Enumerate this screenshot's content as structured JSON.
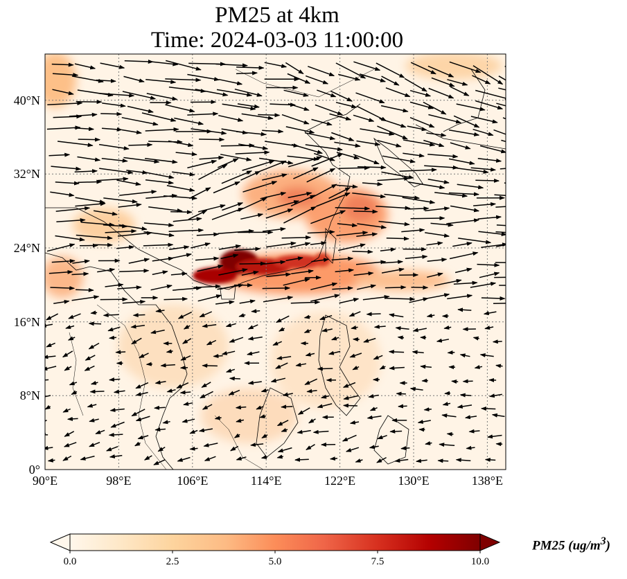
{
  "title": {
    "line1": "PM25 at 4km",
    "line2": "Time: 2024-03-03 11:00:00"
  },
  "map": {
    "extent": {
      "lon_min": 90,
      "lon_max": 140,
      "lat_min": 0,
      "lat_max": 45
    },
    "gridlines": true,
    "x_ticks": [
      "90°E",
      "98°E",
      "106°E",
      "114°E",
      "122°E",
      "130°E",
      "138°E"
    ],
    "y_ticks": [
      "0°",
      "8°N",
      "16°N",
      "24°N",
      "32°N",
      "40°N"
    ],
    "wind_vectors": true
  },
  "colorbar": {
    "label": "PM25 (ug/m",
    "label_sup": "3",
    "label_close": ")",
    "ticks": [
      "0.0",
      "2.5",
      "5.0",
      "7.5",
      "10.0"
    ],
    "range": [
      0,
      10
    ],
    "colormap": [
      "#fff7ec",
      "#fee8c8",
      "#fdd49e",
      "#fdbb84",
      "#fc8d59",
      "#ef6548",
      "#d7301f",
      "#b30000",
      "#7f0000"
    ],
    "extend": "both"
  },
  "colors": {
    "background_low": "#fff4e6",
    "plume": "#8b0000",
    "arrows": "#000000",
    "coastline": "#000000",
    "grid": "#777777"
  }
}
